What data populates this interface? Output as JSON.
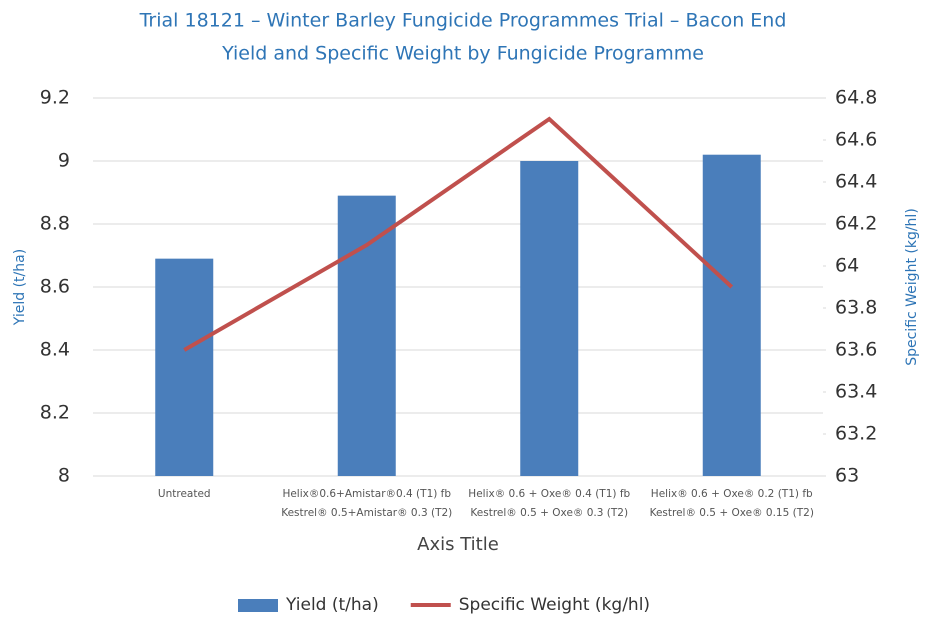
{
  "chart_data": {
    "type": "bar_line",
    "title": "Trial 18121 – Winter Barley  Fungicide Programmes Trial – Bacon End",
    "subtitle": "Yield and Specific Weight by Fungicide Programme",
    "x_label": "Axis Title",
    "y_label": "Yield (t/ha)",
    "y2_label": "Specific Weight (kg/hl)",
    "categories": [
      [
        "Untreated"
      ],
      [
        "Helix®0.6+Amistar®0.4  (T1)  fb",
        "Kestrel® 0.5+Amistar® 0.3 (T2)"
      ],
      [
        "Helix® 0.6 + Oxe® 0.4 (T1)  fb",
        "Kestrel® 0.5 + Oxe® 0.3 (T2)"
      ],
      [
        "Helix® 0.6 + Oxe® 0.2 (T1) fb",
        "Kestrel® 0.5 + Oxe® 0.15 (T2)"
      ]
    ],
    "series": [
      {
        "name": "Yield (t/ha)",
        "color": "#4a7ebb",
        "type": "bar",
        "values": [
          8.69,
          8.89,
          9.0,
          9.02
        ]
      },
      {
        "name": "Specific Weight (kg/hl)",
        "color": "#c0504d",
        "type": "line",
        "axis": "y2",
        "values": [
          63.6,
          64.1,
          64.7,
          63.9
        ]
      }
    ],
    "ylim": [
      8,
      9.2
    ],
    "yticks": [
      8,
      8.2,
      8.4,
      8.6,
      8.8,
      9,
      9.2
    ],
    "y2lim": [
      63,
      64.8
    ],
    "y2ticks": [
      63,
      63.2,
      63.4,
      63.6,
      63.8,
      64,
      64.2,
      64.4,
      64.6,
      64.8
    ],
    "grid": true,
    "legend": "bottom"
  }
}
